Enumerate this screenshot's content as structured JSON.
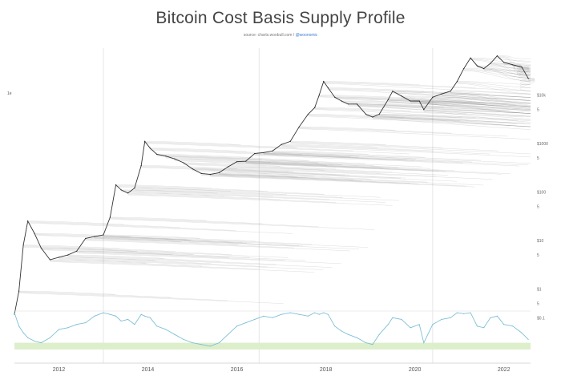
{
  "header": {
    "title": "Bitcoin Cost Basis Supply Profile",
    "source_prefix": "source: charts.woobull.com / ",
    "source_handle": "@woonomic"
  },
  "chart_data": [
    {
      "type": "line",
      "panel": "price-cost-basis",
      "title": "Bitcoin Cost Basis Supply Profile",
      "yscale": "log",
      "ylim": [
        0.3,
        100000
      ],
      "xlim": [
        2011.0,
        2022.6
      ],
      "x_ticks": [
        "2012",
        "2014",
        "2016",
        "2018",
        "2020",
        "2022"
      ],
      "x_tick_values": [
        2012,
        2014,
        2016,
        2018,
        2020,
        2022
      ],
      "y_tick_labels": [
        "$10k",
        "$1000",
        "$100",
        "$10",
        "$1"
      ],
      "y_tick_values": [
        10000,
        1000,
        100,
        10,
        1
      ],
      "y_minor_label": "5",
      "side_marker": "1e",
      "series": [
        {
          "x": [
            2011.0,
            2011.1,
            2011.2,
            2011.3,
            2011.45,
            2011.6,
            2011.8,
            2012.0,
            2012.2,
            2012.4,
            2012.6,
            2012.8,
            2013.0,
            2013.15,
            2013.28,
            2013.4,
            2013.55,
            2013.7,
            2013.85,
            2013.93,
            2014.05,
            2014.2,
            2014.4,
            2014.6,
            2014.8,
            2015.0,
            2015.2,
            2015.4,
            2015.6,
            2015.8,
            2016.0,
            2016.2,
            2016.4,
            2016.6,
            2016.8,
            2017.0,
            2017.2,
            2017.4,
            2017.6,
            2017.75,
            2017.85,
            2017.95,
            2018.05,
            2018.2,
            2018.35,
            2018.5,
            2018.7,
            2018.9,
            2019.05,
            2019.2,
            2019.4,
            2019.5,
            2019.7,
            2019.9,
            2020.1,
            2020.2,
            2020.4,
            2020.6,
            2020.8,
            2020.95,
            2021.1,
            2021.25,
            2021.4,
            2021.55,
            2021.7,
            2021.85,
            2022.0,
            2022.2,
            2022.4,
            2022.55
          ],
          "values": [
            0.3,
            0.9,
            8,
            25,
            14,
            7,
            4,
            4.5,
            5,
            6,
            11,
            12,
            13,
            30,
            140,
            110,
            95,
            120,
            350,
            1100,
            800,
            600,
            550,
            480,
            400,
            300,
            240,
            230,
            250,
            330,
            420,
            430,
            620,
            650,
            700,
            950,
            1100,
            2200,
            4000,
            5500,
            10000,
            19000,
            14000,
            9000,
            7500,
            6500,
            6500,
            4000,
            3500,
            4000,
            8000,
            12000,
            9500,
            7500,
            7500,
            5000,
            9000,
            10500,
            12000,
            19000,
            35000,
            58000,
            40000,
            35000,
            45000,
            64000,
            47000,
            42000,
            38000,
            22000
          ]
        }
      ]
    },
    {
      "type": "line",
      "panel": "oscillator",
      "ylim": [
        -0.2,
        1.0
      ],
      "xlim": [
        2011.0,
        2022.6
      ],
      "y_tick_labels": [
        "$0.1"
      ],
      "y_tick_values": [
        0.8
      ],
      "band": {
        "ymin": -0.15,
        "ymax": 0.05
      },
      "series": [
        {
          "x": [
            2011.0,
            2011.1,
            2011.2,
            2011.3,
            2011.45,
            2011.6,
            2011.8,
            2012.0,
            2012.2,
            2012.4,
            2012.6,
            2012.8,
            2013.0,
            2013.15,
            2013.28,
            2013.4,
            2013.55,
            2013.7,
            2013.85,
            2013.93,
            2014.05,
            2014.2,
            2014.4,
            2014.6,
            2014.8,
            2015.0,
            2015.2,
            2015.4,
            2015.6,
            2015.8,
            2016.0,
            2016.2,
            2016.4,
            2016.6,
            2016.8,
            2017.0,
            2017.2,
            2017.4,
            2017.6,
            2017.75,
            2017.85,
            2017.95,
            2018.05,
            2018.2,
            2018.35,
            2018.5,
            2018.7,
            2018.9,
            2019.05,
            2019.2,
            2019.4,
            2019.5,
            2019.7,
            2019.9,
            2020.1,
            2020.2,
            2020.4,
            2020.6,
            2020.8,
            2020.95,
            2021.1,
            2021.25,
            2021.4,
            2021.55,
            2021.7,
            2021.85,
            2022.0,
            2022.2,
            2022.4,
            2022.55
          ],
          "values": [
            0.95,
            0.55,
            0.35,
            0.2,
            0.1,
            0.05,
            0.2,
            0.45,
            0.5,
            0.6,
            0.65,
            0.85,
            0.95,
            0.9,
            0.85,
            0.7,
            0.75,
            0.6,
            0.9,
            0.85,
            0.8,
            0.55,
            0.45,
            0.3,
            0.15,
            0.05,
            0.0,
            -0.05,
            0.05,
            0.3,
            0.55,
            0.65,
            0.75,
            0.85,
            0.8,
            0.9,
            0.95,
            0.9,
            0.85,
            0.95,
            0.9,
            0.95,
            0.9,
            0.55,
            0.4,
            0.3,
            0.2,
            0.05,
            0.0,
            0.3,
            0.6,
            0.8,
            0.75,
            0.5,
            0.6,
            0.05,
            0.6,
            0.75,
            0.8,
            0.95,
            0.92,
            0.95,
            0.55,
            0.5,
            0.8,
            0.85,
            0.6,
            0.55,
            0.35,
            0.15
          ]
        }
      ]
    }
  ]
}
